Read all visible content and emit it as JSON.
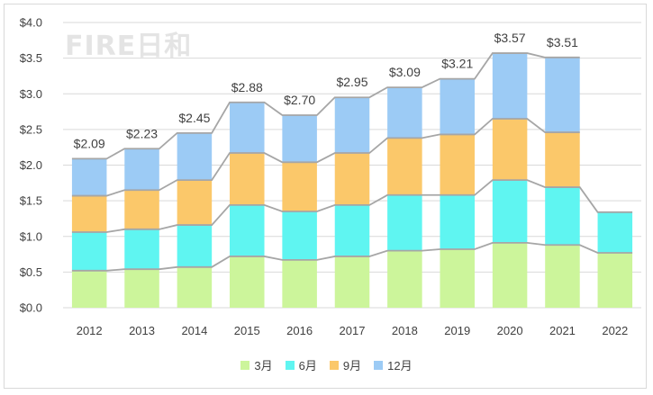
{
  "chart_data": {
    "type": "bar",
    "stacked": true,
    "watermark": "FIRE日和",
    "categories": [
      "2012",
      "2013",
      "2014",
      "2015",
      "2016",
      "2017",
      "2018",
      "2019",
      "2020",
      "2021",
      "2022"
    ],
    "series": [
      {
        "name": "3月",
        "color": "#ccf59b",
        "values": [
          0.52,
          0.54,
          0.57,
          0.72,
          0.67,
          0.72,
          0.8,
          0.82,
          0.91,
          0.88,
          0.77
        ]
      },
      {
        "name": "6月",
        "color": "#5ff5f1",
        "values": [
          0.54,
          0.56,
          0.59,
          0.72,
          0.68,
          0.72,
          0.78,
          0.76,
          0.88,
          0.81,
          0.57
        ]
      },
      {
        "name": "9月",
        "color": "#fbc86a",
        "values": [
          0.51,
          0.55,
          0.63,
          0.73,
          0.69,
          0.73,
          0.8,
          0.85,
          0.86,
          0.77,
          null
        ]
      },
      {
        "name": "12月",
        "color": "#9ccbf5",
        "values": [
          0.52,
          0.58,
          0.66,
          0.71,
          0.66,
          0.78,
          0.71,
          0.78,
          0.92,
          1.05,
          null
        ]
      }
    ],
    "totals": [
      2.09,
      2.23,
      2.45,
      2.88,
      2.7,
      2.95,
      3.09,
      3.21,
      3.57,
      3.51,
      null
    ],
    "total_labels": [
      "$2.09",
      "$2.23",
      "$2.45",
      "$2.88",
      "$2.70",
      "$2.95",
      "$3.09",
      "$3.21",
      "$3.57",
      "$3.51",
      ""
    ],
    "ylim": [
      0,
      4.0
    ],
    "yticks": [
      0.0,
      0.5,
      1.0,
      1.5,
      2.0,
      2.5,
      3.0,
      3.5,
      4.0
    ],
    "ytick_labels": [
      "$0.0",
      "$0.5",
      "$1.0",
      "$1.5",
      "$2.0",
      "$2.5",
      "$3.0",
      "$3.5",
      "$4.0"
    ],
    "grid": true,
    "series_lines": true,
    "legend_position": "bottom"
  }
}
